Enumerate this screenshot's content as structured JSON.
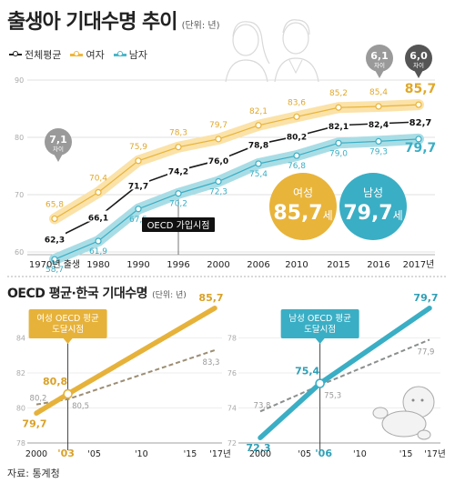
{
  "header": {
    "title": "출생아 기대수명 추이",
    "unit": "(단위: 년)",
    "legend": [
      {
        "label": "전체평균",
        "color": "#222222"
      },
      {
        "label": "여자",
        "color": "#f0b63c"
      },
      {
        "label": "남자",
        "color": "#4bb7c9"
      }
    ]
  },
  "colors": {
    "female": "#e8b43a",
    "female_light": "#fbe2a8",
    "male": "#3aaec4",
    "male_light": "#a9dde6",
    "total": "#1a1a1a",
    "gray": "#9a9a9a",
    "dark_gray": "#555555",
    "oecd_dash": "#9c8e74",
    "oecd_dash_male": "#8a8f8e"
  },
  "chart_data": [
    {
      "type": "line",
      "title": "출생아 기대수명 추이",
      "unit": "(단위: 년)",
      "categories": [
        "1970년 출생",
        "1980",
        "1990",
        "1996",
        "2000",
        "2006",
        "2010",
        "2015",
        "2016",
        "2017년"
      ],
      "ylim": [
        55,
        90
      ],
      "y_ticks": [
        "90",
        "80",
        "70",
        "60"
      ],
      "grid": true,
      "legend_position": "top-left",
      "series": [
        {
          "name": "여자",
          "values": [
            65.8,
            70.4,
            75.9,
            78.3,
            79.7,
            82.1,
            83.6,
            85.2,
            85.4,
            85.7
          ],
          "labels": [
            "65,8",
            "70,4",
            "75,9",
            "78,3",
            "79,7",
            "82,1",
            "83,6",
            "85,2",
            "85,4",
            "85,7"
          ]
        },
        {
          "name": "전체평균",
          "values": [
            62.3,
            66.1,
            71.7,
            74.2,
            76.0,
            78.8,
            80.2,
            82.1,
            82.4,
            82.7
          ],
          "labels": [
            "62,3",
            "66,1",
            "71,7",
            "74,2",
            "76,0",
            "78,8",
            "80,2",
            "82,1",
            "82,4",
            "82,7"
          ]
        },
        {
          "name": "남자",
          "values": [
            58.7,
            61.9,
            67.5,
            70.2,
            72.3,
            75.4,
            76.8,
            79.0,
            79.3,
            79.7
          ],
          "labels": [
            "58,7",
            "61,9",
            "67,5",
            "70,2",
            "72,3",
            "75,4",
            "76,8",
            "79,0",
            "79,3",
            "79,7"
          ]
        }
      ],
      "annotations": {
        "gap_bubbles": [
          {
            "value": "7,1",
            "label": "차이"
          },
          {
            "value": "6,1",
            "label": "차이"
          },
          {
            "value": "6,0",
            "label": "차이"
          }
        ],
        "oecd_join_label": "OECD 가입시점",
        "female_circle": {
          "label": "여성",
          "value": "85,7",
          "unit": "세"
        },
        "male_circle": {
          "label": "남성",
          "value": "79,7",
          "unit": "세"
        }
      }
    },
    {
      "type": "line",
      "title": "OECD 평균·한국 기대수명",
      "unit": "(단위: 년)",
      "panel": "female",
      "x_ticks": [
        "2000",
        "'03",
        "'05",
        "'10",
        "'15",
        "'17년"
      ],
      "ylim": [
        78,
        86
      ],
      "y_ticks": [
        "84",
        "82",
        "80",
        "78"
      ],
      "series": [
        {
          "name": "한국 여성",
          "x": [
            2000,
            2003,
            2017
          ],
          "values": [
            79.7,
            80.8,
            85.7
          ],
          "labels": [
            "79,7",
            "80,8",
            "85,7"
          ]
        },
        {
          "name": "OECD 평균",
          "x": [
            2000,
            2003,
            2017
          ],
          "values": [
            80.2,
            80.5,
            83.3
          ],
          "labels": [
            "80,2",
            "80,5",
            "83,3"
          ]
        }
      ],
      "annotation": "여성 OECD 평균\n도달시점",
      "highlight_tick": "'03"
    },
    {
      "type": "line",
      "panel": "male",
      "x_ticks": [
        "2000",
        "'05",
        "'06",
        "'10",
        "'15",
        "'17년"
      ],
      "ylim": [
        72,
        80
      ],
      "y_ticks": [
        "78",
        "76",
        "74",
        "72"
      ],
      "series": [
        {
          "name": "한국 남성",
          "x": [
            2000,
            2006,
            2017
          ],
          "values": [
            72.3,
            75.4,
            79.7
          ],
          "labels": [
            "72,3",
            "75,4",
            "79,7"
          ]
        },
        {
          "name": "OECD 평균",
          "x": [
            2000,
            2006,
            2017
          ],
          "values": [
            73.8,
            75.3,
            77.9
          ],
          "labels": [
            "73,8",
            "75,3",
            "77,9"
          ]
        }
      ],
      "annotation": "남성 OECD 평균\n도달시점",
      "highlight_tick": "'06"
    }
  ],
  "footer": {
    "source": "자료: 통계청"
  }
}
